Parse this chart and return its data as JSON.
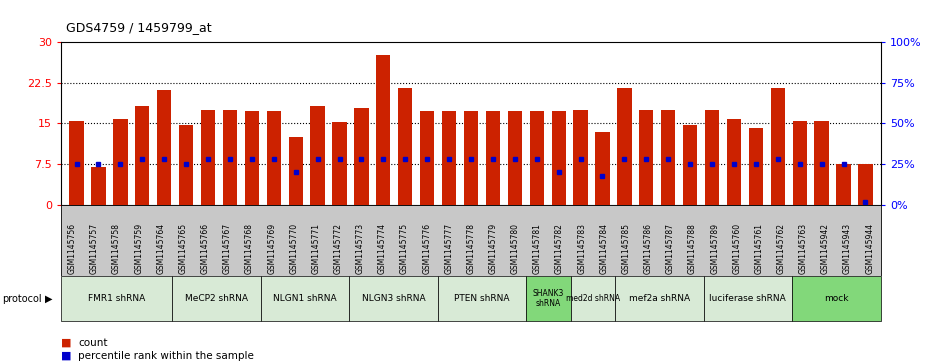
{
  "title": "GDS4759 / 1459799_at",
  "samples": [
    "GSM1145756",
    "GSM1145757",
    "GSM1145758",
    "GSM1145759",
    "GSM1145764",
    "GSM1145765",
    "GSM1145766",
    "GSM1145767",
    "GSM1145768",
    "GSM1145769",
    "GSM1145770",
    "GSM1145771",
    "GSM1145772",
    "GSM1145773",
    "GSM1145774",
    "GSM1145775",
    "GSM1145776",
    "GSM1145777",
    "GSM1145778",
    "GSM1145779",
    "GSM1145780",
    "GSM1145781",
    "GSM1145782",
    "GSM1145783",
    "GSM1145784",
    "GSM1145785",
    "GSM1145786",
    "GSM1145787",
    "GSM1145788",
    "GSM1145789",
    "GSM1145760",
    "GSM1145761",
    "GSM1145762",
    "GSM1145763",
    "GSM1145942",
    "GSM1145943",
    "GSM1145944"
  ],
  "counts": [
    15.5,
    7.0,
    15.8,
    18.2,
    21.2,
    14.7,
    17.5,
    17.5,
    17.2,
    17.2,
    12.5,
    18.2,
    15.2,
    17.8,
    27.5,
    21.5,
    17.2,
    17.2,
    17.2,
    17.2,
    17.2,
    17.2,
    17.2,
    17.5,
    13.5,
    21.5,
    17.5,
    17.5,
    14.8,
    17.5,
    15.8,
    14.2,
    21.5,
    15.5,
    15.5,
    7.5,
    7.5
  ],
  "percentiles": [
    25,
    25,
    25,
    28,
    28,
    25,
    28,
    28,
    28,
    28,
    20,
    28,
    28,
    28,
    28,
    28,
    28,
    28,
    28,
    28,
    28,
    28,
    20,
    28,
    18,
    28,
    28,
    28,
    25,
    25,
    25,
    25,
    28,
    25,
    25,
    25,
    2
  ],
  "protocol_groups": [
    {
      "label": "FMR1 shRNA",
      "start": 0,
      "end": 5,
      "color": "#d8ead6"
    },
    {
      "label": "MeCP2 shRNA",
      "start": 5,
      "end": 9,
      "color": "#d8ead6"
    },
    {
      "label": "NLGN1 shRNA",
      "start": 9,
      "end": 13,
      "color": "#d8ead6"
    },
    {
      "label": "NLGN3 shRNA",
      "start": 13,
      "end": 17,
      "color": "#d8ead6"
    },
    {
      "label": "PTEN shRNA",
      "start": 17,
      "end": 21,
      "color": "#d8ead6"
    },
    {
      "label": "SHANK3\nshRNA",
      "start": 21,
      "end": 23,
      "color": "#82d87a"
    },
    {
      "label": "med2d shRNA",
      "start": 23,
      "end": 25,
      "color": "#d8ead6"
    },
    {
      "label": "mef2a shRNA",
      "start": 25,
      "end": 29,
      "color": "#d8ead6"
    },
    {
      "label": "luciferase shRNA",
      "start": 29,
      "end": 33,
      "color": "#d8ead6"
    },
    {
      "label": "mock",
      "start": 33,
      "end": 37,
      "color": "#82d87a"
    }
  ],
  "ylim_left": [
    0,
    30
  ],
  "ylim_right": [
    0,
    100
  ],
  "yticks_left": [
    0,
    7.5,
    15,
    22.5,
    30
  ],
  "ytick_labels_left": [
    "0",
    "7.5",
    "15",
    "22.5",
    "30"
  ],
  "yticks_right": [
    0,
    25,
    50,
    75,
    100
  ],
  "ytick_labels_right": [
    "0%",
    "25%",
    "50%",
    "75%",
    "100%"
  ],
  "bar_color": "#cc2200",
  "percentile_color": "#0000cc",
  "bg_color": "#ffffff",
  "sample_bg_color": "#c8c8c8",
  "dotted_levels": [
    7.5,
    15,
    22.5
  ]
}
